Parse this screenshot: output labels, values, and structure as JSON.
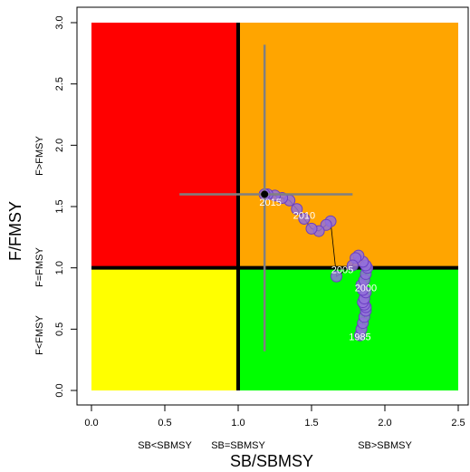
{
  "chart_data": {
    "type": "kobe",
    "x_label": "SB/SBMSY",
    "y_label": "F/FMSY",
    "xlim": [
      0,
      2.5
    ],
    "ylim": [
      0,
      3
    ],
    "xticks": [
      {
        "value": 0,
        "label": "0.0"
      },
      0.5,
      {
        "value": 1,
        "label": "1.0"
      },
      1.5,
      {
        "value": 2,
        "label": "2.0"
      },
      2.5
    ],
    "yticks": [
      {
        "value": 0,
        "label": "0.0"
      },
      0.5,
      {
        "value": 1,
        "label": "1.0"
      },
      1.5,
      {
        "value": 2,
        "label": "2.0"
      },
      2.5,
      {
        "value": 3,
        "label": "3.0"
      }
    ],
    "reference_x": 1,
    "reference_y": 1,
    "quadrant_colors": {
      "top_left": "#ff0000",
      "top_right": "#ffa500",
      "bottom_left": "#ffff00",
      "bottom_right": "#00ff00"
    },
    "x_region_labels": [
      "SB<SBMSY",
      "SB=SBMSY",
      "SB>SBMSY"
    ],
    "y_region_labels": [
      "F<FMSY",
      "F=FMSY",
      "F>FMSY"
    ],
    "trajectory": {
      "color": "#9370db",
      "x": [
        1.83,
        1.84,
        1.85,
        1.86,
        1.87,
        1.87,
        1.86,
        1.85,
        1.86,
        1.87,
        1.85,
        1.84,
        1.86,
        1.87,
        1.88,
        1.87,
        1.85,
        1.82,
        1.8,
        1.78,
        1.67,
        1.63,
        1.6,
        1.55,
        1.5,
        1.45,
        1.4,
        1.35,
        1.3,
        1.25,
        1.2,
        1.18
      ],
      "y": [
        0.45,
        0.5,
        0.55,
        0.6,
        0.65,
        0.68,
        0.7,
        0.72,
        0.75,
        0.8,
        0.82,
        0.86,
        0.9,
        0.95,
        1.0,
        1.02,
        1.05,
        1.1,
        1.08,
        1.02,
        0.93,
        1.38,
        1.35,
        1.3,
        1.32,
        1.4,
        1.48,
        1.55,
        1.57,
        1.59,
        1.6,
        1.6
      ]
    },
    "annotations": [
      {
        "text": "1985",
        "x": 1.83,
        "y": 0.43
      },
      {
        "text": "2000",
        "x": 1.87,
        "y": 0.83
      },
      {
        "text": "2005",
        "x": 1.71,
        "y": 0.98
      },
      {
        "text": "2010",
        "x": 1.45,
        "y": 1.42
      },
      {
        "text": "2015",
        "x": 1.22,
        "y": 1.53
      }
    ],
    "uncertainty": {
      "color": "#808080",
      "x": 1.18,
      "y": 1.6,
      "x_range": [
        0.6,
        1.78
      ],
      "y_range": [
        0.32,
        2.82
      ]
    }
  }
}
